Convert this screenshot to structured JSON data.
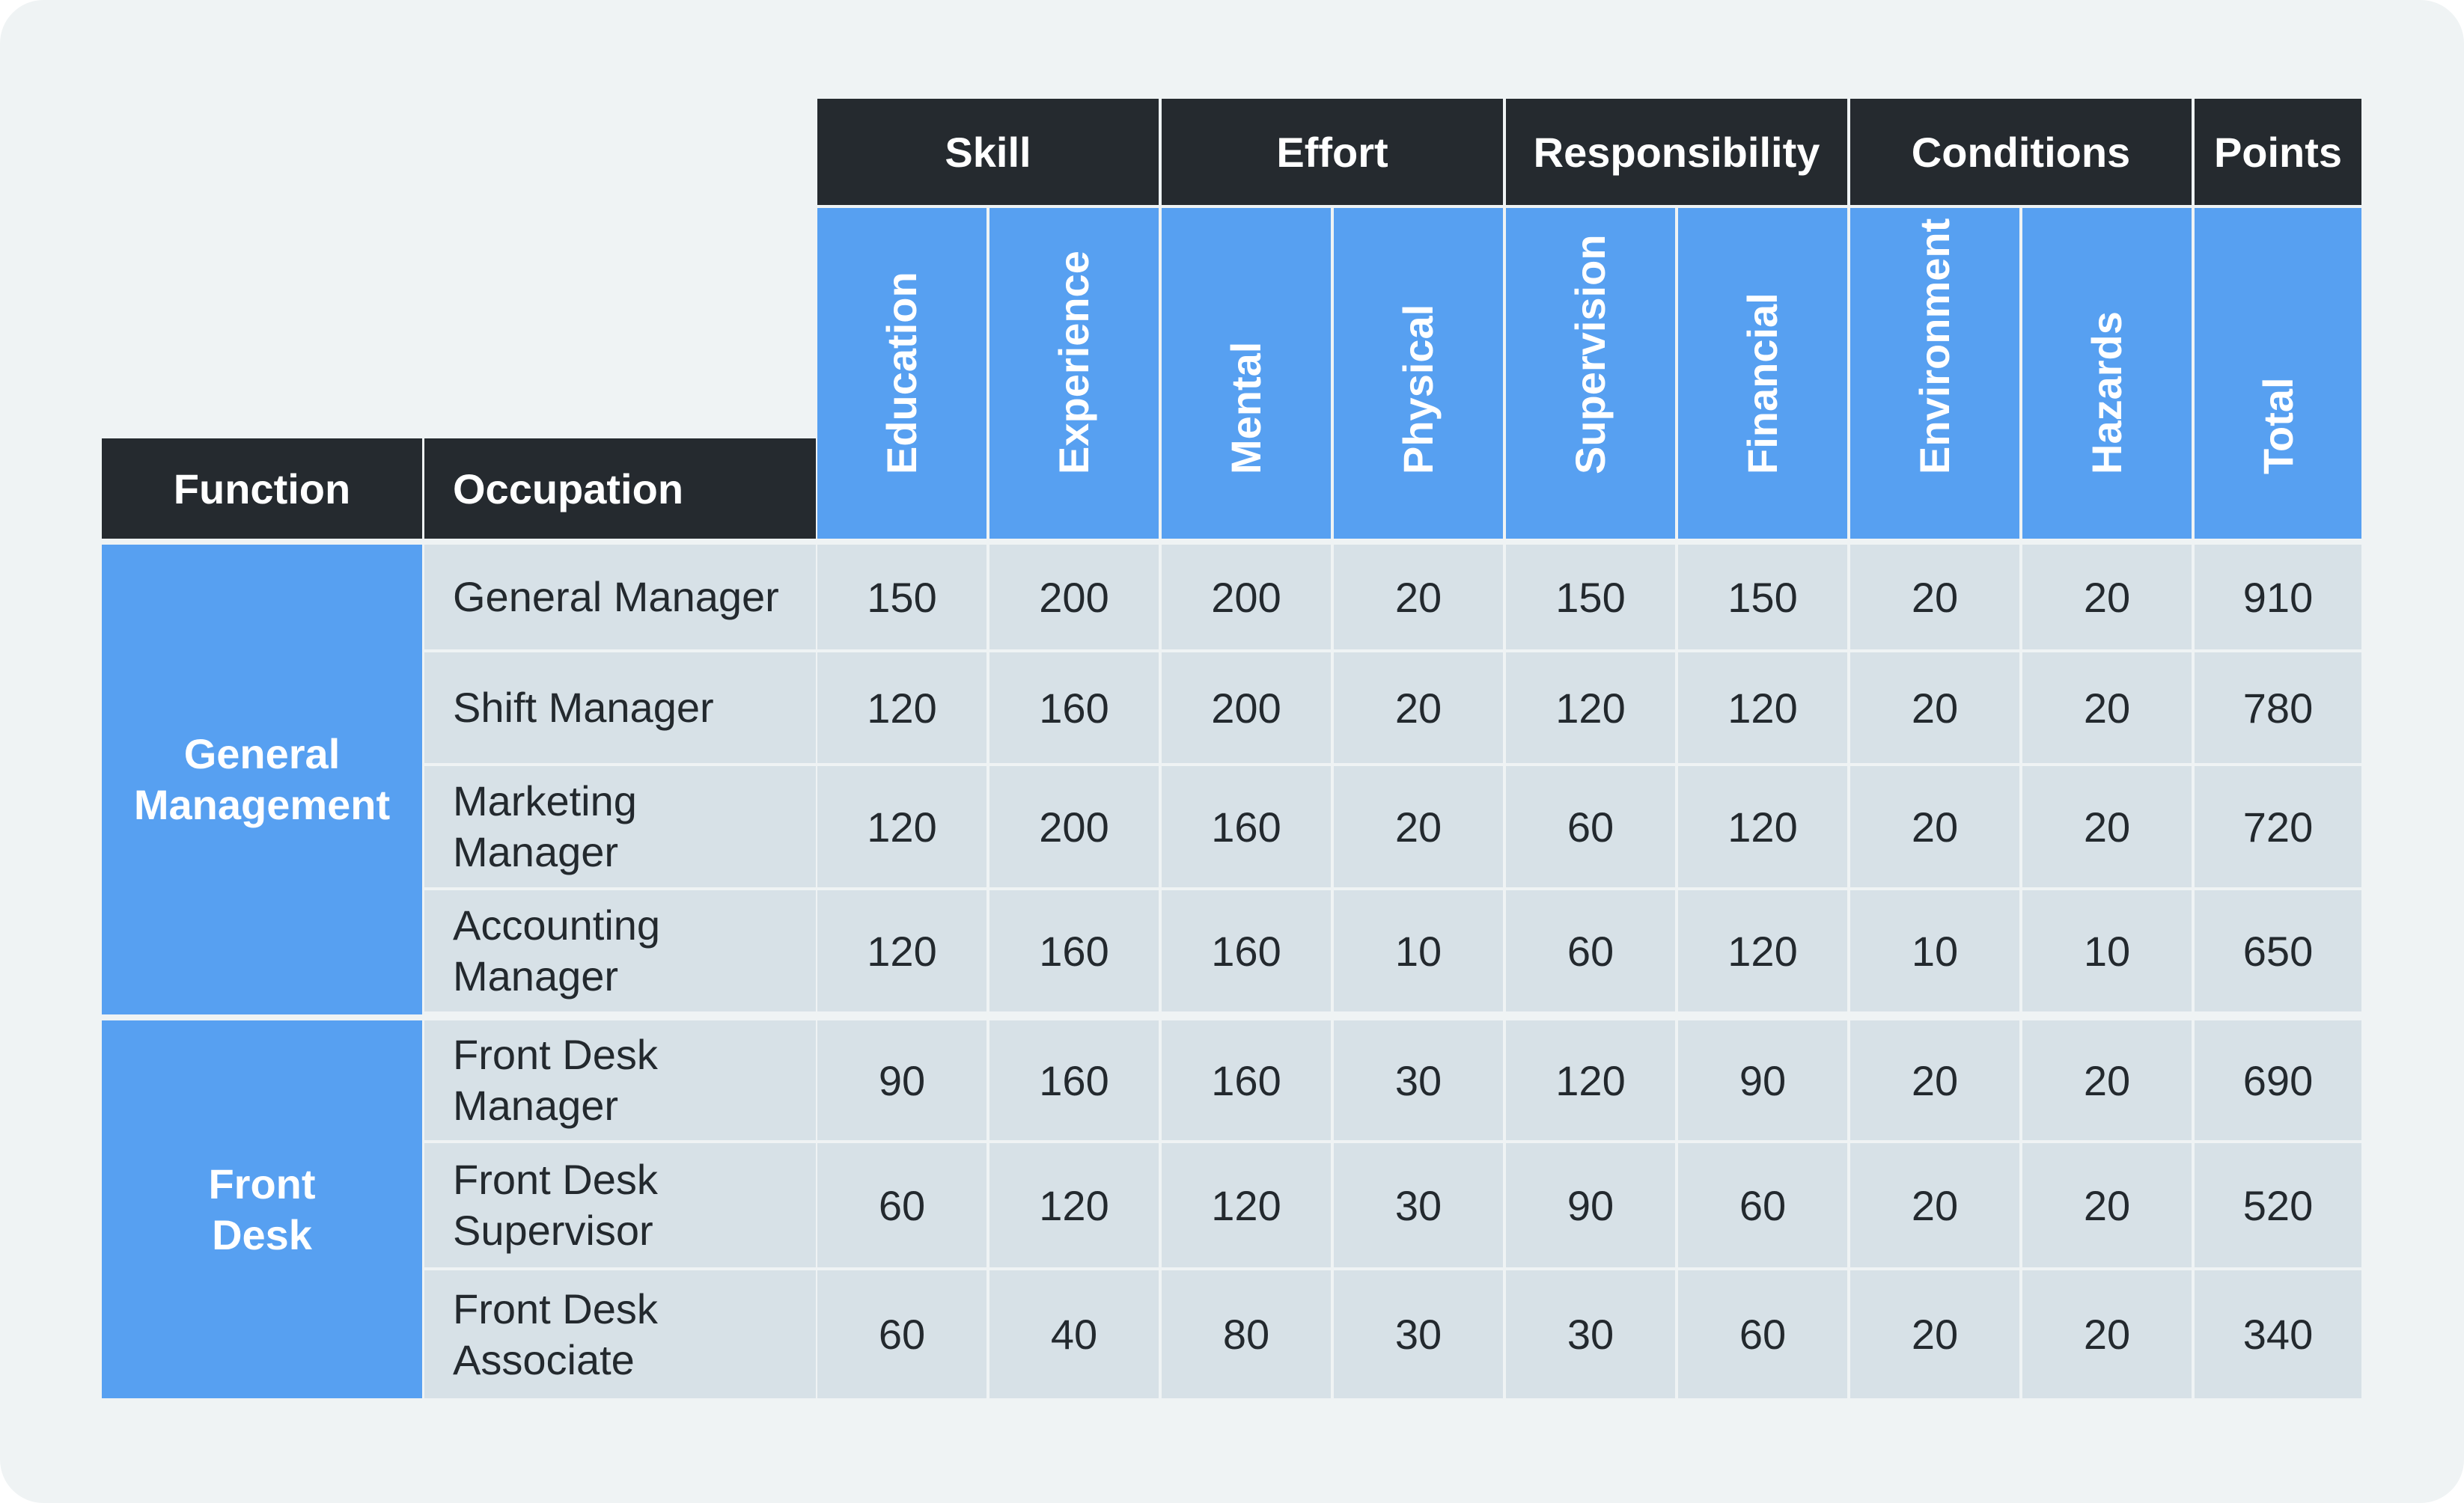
{
  "chart_data": {
    "type": "table",
    "groups": [
      {
        "label": "Skill",
        "span": 2
      },
      {
        "label": "Effort",
        "span": 2
      },
      {
        "label": "Responsibility",
        "span": 2
      },
      {
        "label": "Conditions",
        "span": 2
      },
      {
        "label": "Points",
        "span": 1
      }
    ],
    "row_headers": [
      "Function",
      "Occupation"
    ],
    "columns": [
      "Education",
      "Experience",
      "Mental",
      "Physical",
      "Supervision",
      "Financial",
      "Environment",
      "Hazards",
      "Total"
    ],
    "functions": [
      {
        "label": "General\nManagement",
        "rows": 4
      },
      {
        "label": "Front\nDesk",
        "rows": 3
      }
    ],
    "rows": [
      {
        "occupation": "General Manager",
        "values": [
          150,
          200,
          200,
          20,
          150,
          150,
          20,
          20,
          910
        ]
      },
      {
        "occupation": "Shift Manager",
        "values": [
          120,
          160,
          200,
          20,
          120,
          120,
          20,
          20,
          780
        ]
      },
      {
        "occupation": "Marketing\nManager",
        "values": [
          120,
          200,
          160,
          20,
          60,
          120,
          20,
          20,
          720
        ]
      },
      {
        "occupation": "Accounting\nManager",
        "values": [
          120,
          160,
          160,
          10,
          60,
          120,
          10,
          10,
          650
        ]
      },
      {
        "occupation": "Front Desk\nManager",
        "values": [
          90,
          160,
          160,
          30,
          120,
          90,
          20,
          20,
          690
        ]
      },
      {
        "occupation": "Front Desk\nSupervisor",
        "values": [
          60,
          120,
          120,
          30,
          90,
          60,
          20,
          20,
          520
        ]
      },
      {
        "occupation": "Front Desk\nAssociate",
        "values": [
          60,
          40,
          80,
          30,
          30,
          60,
          20,
          20,
          340
        ]
      }
    ]
  }
}
